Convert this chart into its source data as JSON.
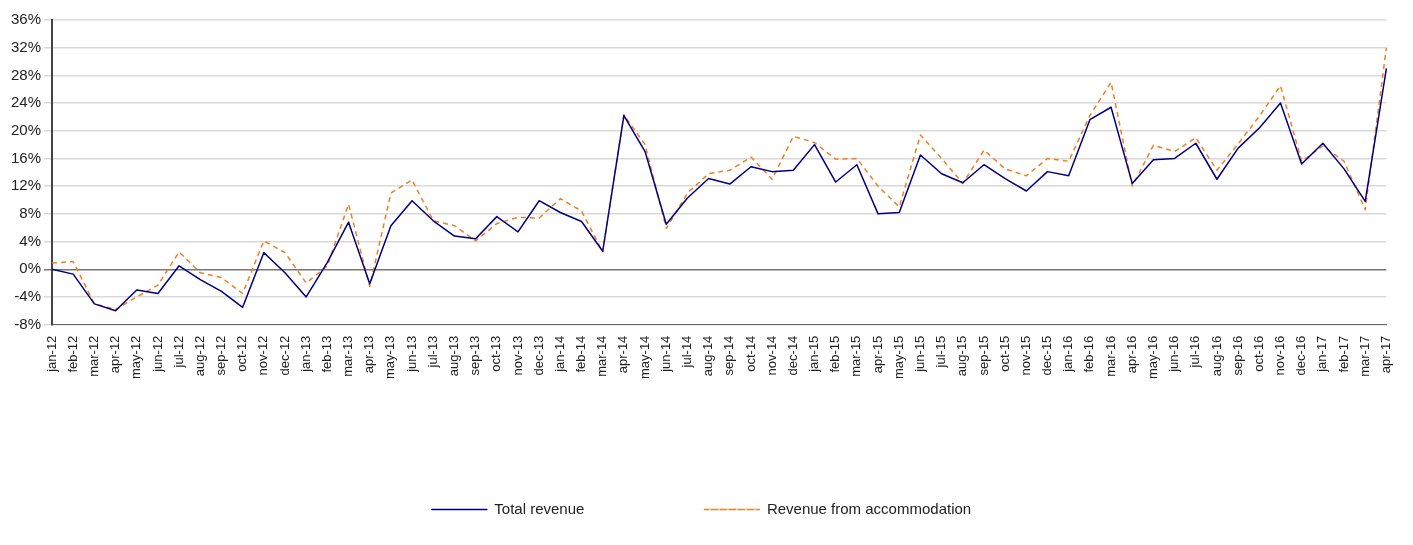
{
  "chart_data": {
    "type": "line",
    "categories": [
      "jan-12",
      "feb-12",
      "mar-12",
      "apr-12",
      "may-12",
      "jun-12",
      "jul-12",
      "aug-12",
      "sep-12",
      "oct-12",
      "nov-12",
      "dec-12",
      "jan-13",
      "feb-13",
      "mar-13",
      "apr-13",
      "may-13",
      "jun-13",
      "jul-13",
      "aug-13",
      "sep-13",
      "oct-13",
      "nov-13",
      "dec-13",
      "jan-14",
      "feb-14",
      "mar-14",
      "apr-14",
      "may-14",
      "jun-14",
      "jul-14",
      "aug-14",
      "sep-14",
      "oct-14",
      "nov-14",
      "dec-14",
      "jan-15",
      "feb-15",
      "mar-15",
      "apr-15",
      "may-15",
      "jun-15",
      "jul-15",
      "aug-15",
      "sep-15",
      "oct-15",
      "nov-15",
      "dec-15",
      "jan-16",
      "feb-16",
      "mar-16",
      "apr-16",
      "may-16",
      "jun-16",
      "jul-16",
      "aug-16",
      "sep-16",
      "oct-16",
      "nov-16",
      "dec-16",
      "jan-17",
      "feb-17",
      "mar-17",
      "apr-17"
    ],
    "series": [
      {
        "name": "Total revenue",
        "color": "#000080",
        "line_style": "solid",
        "values": [
          0,
          -0.7,
          -5,
          -6,
          -3,
          -3.5,
          0.5,
          -1.5,
          -3.2,
          -5.5,
          2.4,
          -0.5,
          -4,
          1,
          6.8,
          -2.1,
          6.3,
          9.9,
          7,
          4.8,
          4.4,
          7.6,
          5.4,
          9.9,
          8.2,
          6.9,
          2.6,
          22.2,
          17,
          6.5,
          10.3,
          13.1,
          12.3,
          14.8,
          14.1,
          14.3,
          18,
          12.6,
          15.1,
          8,
          8.2,
          16.5,
          13.8,
          12.5,
          15.1,
          13.1,
          11.3,
          14.1,
          13.5,
          21.6,
          23.4,
          12.4,
          15.8,
          16,
          18.2,
          13,
          17.5,
          20.4,
          24,
          15.2,
          18.2,
          14.5,
          9.8,
          29
        ]
      },
      {
        "name": "Revenue from accommodation",
        "color": "#f07f22",
        "line_style": "dashed",
        "values": [
          0.9,
          1.1,
          -5,
          -5.8,
          -4,
          -2.3,
          2.5,
          -0.5,
          -1.2,
          -3.5,
          4.1,
          2.4,
          -2,
          0.5,
          9.4,
          -2.5,
          11,
          12.9,
          7,
          6.3,
          4.1,
          6.6,
          7.5,
          7.4,
          10.2,
          8.4,
          2.5,
          22.3,
          18,
          5.9,
          11,
          13.8,
          14.3,
          16.2,
          13,
          19.2,
          18.3,
          15.9,
          16,
          12,
          9,
          19.4,
          16,
          12.4,
          17.2,
          14.5,
          13.5,
          16,
          15.6,
          22.2,
          27,
          12,
          17.9,
          17,
          19,
          14.3,
          18.1,
          22.1,
          26.5,
          15.6,
          17.8,
          15.6,
          8.6,
          32
        ]
      }
    ],
    "ylim": [
      -8,
      36
    ],
    "yticks": [
      {
        "value": -8,
        "label": "-8%"
      },
      {
        "value": -4,
        "label": "-4%"
      },
      {
        "value": 0,
        "label": "0%"
      },
      {
        "value": 4,
        "label": "4%"
      },
      {
        "value": 8,
        "label": "8%"
      },
      {
        "value": 12,
        "label": "12%"
      },
      {
        "value": 16,
        "label": "16%"
      },
      {
        "value": 20,
        "label": "20%"
      },
      {
        "value": 24,
        "label": "24%"
      },
      {
        "value": 28,
        "label": "28%"
      },
      {
        "value": 32,
        "label": "32%"
      },
      {
        "value": 36,
        "label": "36%"
      }
    ],
    "grid": "y",
    "legend": "bottom",
    "marker": "none"
  }
}
